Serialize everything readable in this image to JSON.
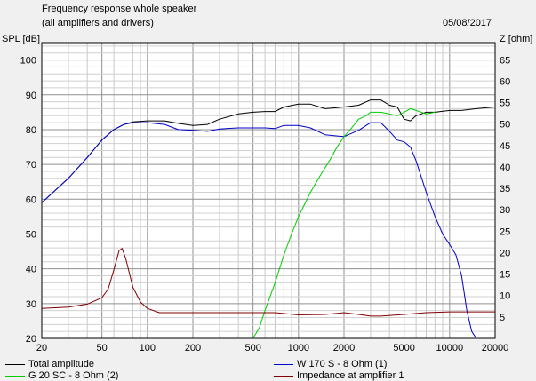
{
  "header": {
    "title": "Frequency response whole speaker",
    "subtitle": "(all amplifiers and drivers)",
    "date": "05/08/2017"
  },
  "chart_data": {
    "type": "line",
    "xscale": "log",
    "xlim": [
      20,
      20000
    ],
    "ylim": [
      20,
      105
    ],
    "y2lim": [
      0,
      69
    ],
    "ylabel": "SPL [dB]",
    "y2label": "Z [ohm]",
    "xticks": [
      20,
      50,
      100,
      200,
      500,
      1000,
      2000,
      5000,
      10000,
      20000
    ],
    "xtick_labels": [
      "20",
      "50",
      "100",
      "200",
      "500",
      "1000",
      "2000",
      "5000",
      "10000",
      "20000"
    ],
    "yticks": [
      20,
      30,
      40,
      50,
      60,
      70,
      80,
      90,
      100
    ],
    "y2ticks": [
      5,
      10,
      15,
      20,
      25,
      30,
      35,
      40,
      45,
      50,
      55,
      60,
      65
    ],
    "grid": true,
    "legend_position": "bottom",
    "series": [
      {
        "name": "Total amplitude",
        "axis": "left",
        "color": "#000000",
        "points": [
          [
            20,
            59
          ],
          [
            30,
            66
          ],
          [
            40,
            72
          ],
          [
            50,
            77
          ],
          [
            60,
            80
          ],
          [
            70,
            81.5
          ],
          [
            80,
            82.2
          ],
          [
            100,
            82.5
          ],
          [
            130,
            82.5
          ],
          [
            160,
            81.8
          ],
          [
            200,
            81.2
          ],
          [
            250,
            81.5
          ],
          [
            300,
            83
          ],
          [
            400,
            84.5
          ],
          [
            500,
            85
          ],
          [
            600,
            85.2
          ],
          [
            700,
            85.2
          ],
          [
            800,
            86.5
          ],
          [
            1000,
            87.3
          ],
          [
            1200,
            87.3
          ],
          [
            1500,
            86
          ],
          [
            2000,
            86.5
          ],
          [
            2500,
            87
          ],
          [
            3000,
            88.5
          ],
          [
            3500,
            88.5
          ],
          [
            4000,
            87
          ],
          [
            4500,
            86.5
          ],
          [
            5000,
            83
          ],
          [
            5500,
            82.5
          ],
          [
            6000,
            84
          ],
          [
            7000,
            85
          ],
          [
            8000,
            85
          ],
          [
            10000,
            85.5
          ],
          [
            12000,
            85.5
          ],
          [
            15000,
            86
          ],
          [
            20000,
            86.5
          ]
        ]
      },
      {
        "name": "W 170 S - 8 Ohm (1)",
        "axis": "left",
        "color": "#0000cc",
        "points": [
          [
            20,
            59
          ],
          [
            30,
            66
          ],
          [
            40,
            72
          ],
          [
            50,
            77
          ],
          [
            60,
            80
          ],
          [
            70,
            81.5
          ],
          [
            80,
            82
          ],
          [
            100,
            82
          ],
          [
            130,
            81.5
          ],
          [
            160,
            80
          ],
          [
            200,
            79.8
          ],
          [
            250,
            79.5
          ],
          [
            300,
            80.2
          ],
          [
            400,
            80.5
          ],
          [
            500,
            80.5
          ],
          [
            600,
            80.5
          ],
          [
            700,
            80.3
          ],
          [
            800,
            81.2
          ],
          [
            1000,
            81.2
          ],
          [
            1200,
            80.5
          ],
          [
            1500,
            78.5
          ],
          [
            2000,
            78
          ],
          [
            2500,
            79.8
          ],
          [
            3000,
            82
          ],
          [
            3500,
            82
          ],
          [
            4000,
            79.5
          ],
          [
            4500,
            77
          ],
          [
            5000,
            76.5
          ],
          [
            5500,
            75
          ],
          [
            6000,
            71
          ],
          [
            7000,
            62
          ],
          [
            8000,
            55
          ],
          [
            9000,
            50
          ],
          [
            10000,
            47
          ],
          [
            11000,
            44
          ],
          [
            12000,
            38
          ],
          [
            13000,
            28
          ],
          [
            14000,
            22
          ],
          [
            15000,
            20
          ]
        ]
      },
      {
        "name": "G 20 SC - 8 Ohm (2)",
        "axis": "left",
        "color": "#00cc00",
        "points": [
          [
            500,
            20
          ],
          [
            550,
            23
          ],
          [
            600,
            28
          ],
          [
            700,
            36
          ],
          [
            800,
            44
          ],
          [
            900,
            50
          ],
          [
            1000,
            55
          ],
          [
            1200,
            62
          ],
          [
            1400,
            67
          ],
          [
            1600,
            71
          ],
          [
            1800,
            75
          ],
          [
            2000,
            78
          ],
          [
            2200,
            80
          ],
          [
            2500,
            83
          ],
          [
            2800,
            84
          ],
          [
            3000,
            85
          ],
          [
            3500,
            85
          ],
          [
            4000,
            84.5
          ],
          [
            4500,
            84
          ],
          [
            5000,
            85
          ],
          [
            5500,
            86
          ],
          [
            6000,
            85.5
          ],
          [
            7000,
            84.5
          ],
          [
            8000,
            85
          ]
        ]
      },
      {
        "name": "Impedance at amplifier 1",
        "axis": "right",
        "color": "#800000",
        "points": [
          [
            20,
            7
          ],
          [
            30,
            7.3
          ],
          [
            40,
            8
          ],
          [
            50,
            9.5
          ],
          [
            55,
            11.5
          ],
          [
            60,
            16
          ],
          [
            65,
            20.5
          ],
          [
            68,
            21
          ],
          [
            72,
            18.5
          ],
          [
            80,
            12
          ],
          [
            90,
            8.5
          ],
          [
            100,
            7
          ],
          [
            120,
            6
          ],
          [
            150,
            6
          ],
          [
            200,
            6
          ],
          [
            300,
            6
          ],
          [
            500,
            6
          ],
          [
            700,
            6
          ],
          [
            1000,
            5.5
          ],
          [
            1500,
            5.6
          ],
          [
            2000,
            6
          ],
          [
            2500,
            5.6
          ],
          [
            3000,
            5.2
          ],
          [
            3500,
            5.2
          ],
          [
            5000,
            5.6
          ],
          [
            7000,
            6
          ],
          [
            10000,
            6.2
          ],
          [
            15000,
            6.2
          ],
          [
            20000,
            6.2
          ]
        ]
      }
    ]
  }
}
